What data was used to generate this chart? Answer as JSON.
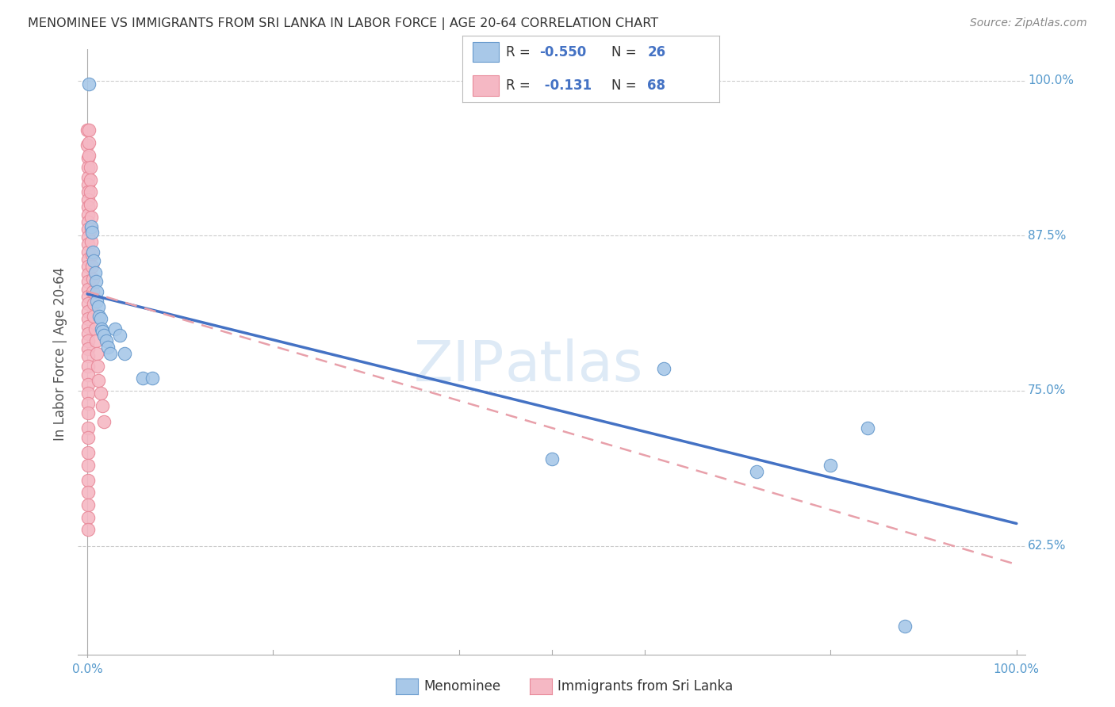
{
  "title": "MENOMINEE VS IMMIGRANTS FROM SRI LANKA IN LABOR FORCE | AGE 20-64 CORRELATION CHART",
  "source": "Source: ZipAtlas.com",
  "ylabel_label": "In Labor Force | Age 20-64",
  "ytick_values": [
    0.625,
    0.75,
    0.875,
    1.0
  ],
  "ytick_labels": [
    "62.5%",
    "75.0%",
    "87.5%",
    "100.0%"
  ],
  "xtick_labels": [
    "0.0%",
    "100.0%"
  ],
  "menominee_points": [
    [
      0.002,
      0.997
    ],
    [
      0.004,
      0.882
    ],
    [
      0.005,
      0.878
    ],
    [
      0.006,
      0.862
    ],
    [
      0.007,
      0.855
    ],
    [
      0.008,
      0.845
    ],
    [
      0.009,
      0.838
    ],
    [
      0.01,
      0.83
    ],
    [
      0.01,
      0.822
    ],
    [
      0.012,
      0.818
    ],
    [
      0.013,
      0.81
    ],
    [
      0.014,
      0.808
    ],
    [
      0.015,
      0.8
    ],
    [
      0.016,
      0.798
    ],
    [
      0.018,
      0.795
    ],
    [
      0.02,
      0.79
    ],
    [
      0.022,
      0.785
    ],
    [
      0.025,
      0.78
    ],
    [
      0.03,
      0.8
    ],
    [
      0.035,
      0.795
    ],
    [
      0.04,
      0.78
    ],
    [
      0.06,
      0.76
    ],
    [
      0.07,
      0.76
    ],
    [
      0.5,
      0.695
    ],
    [
      0.62,
      0.768
    ],
    [
      0.72,
      0.685
    ],
    [
      0.8,
      0.69
    ],
    [
      0.84,
      0.72
    ],
    [
      0.88,
      0.56
    ]
  ],
  "srilanka_points": [
    [
      0.0,
      0.96
    ],
    [
      0.0,
      0.948
    ],
    [
      0.001,
      0.938
    ],
    [
      0.001,
      0.93
    ],
    [
      0.001,
      0.922
    ],
    [
      0.001,
      0.916
    ],
    [
      0.001,
      0.91
    ],
    [
      0.001,
      0.904
    ],
    [
      0.001,
      0.898
    ],
    [
      0.001,
      0.892
    ],
    [
      0.001,
      0.886
    ],
    [
      0.001,
      0.88
    ],
    [
      0.001,
      0.874
    ],
    [
      0.001,
      0.868
    ],
    [
      0.001,
      0.862
    ],
    [
      0.001,
      0.856
    ],
    [
      0.001,
      0.85
    ],
    [
      0.001,
      0.844
    ],
    [
      0.001,
      0.838
    ],
    [
      0.001,
      0.832
    ],
    [
      0.001,
      0.826
    ],
    [
      0.001,
      0.82
    ],
    [
      0.001,
      0.814
    ],
    [
      0.001,
      0.808
    ],
    [
      0.001,
      0.802
    ],
    [
      0.001,
      0.796
    ],
    [
      0.001,
      0.79
    ],
    [
      0.001,
      0.784
    ],
    [
      0.001,
      0.778
    ],
    [
      0.001,
      0.77
    ],
    [
      0.001,
      0.763
    ],
    [
      0.001,
      0.755
    ],
    [
      0.001,
      0.748
    ],
    [
      0.001,
      0.74
    ],
    [
      0.001,
      0.732
    ],
    [
      0.001,
      0.72
    ],
    [
      0.001,
      0.712
    ],
    [
      0.001,
      0.7
    ],
    [
      0.001,
      0.69
    ],
    [
      0.001,
      0.678
    ],
    [
      0.001,
      0.668
    ],
    [
      0.001,
      0.658
    ],
    [
      0.001,
      0.648
    ],
    [
      0.001,
      0.638
    ],
    [
      0.002,
      0.96
    ],
    [
      0.002,
      0.95
    ],
    [
      0.002,
      0.94
    ],
    [
      0.003,
      0.93
    ],
    [
      0.003,
      0.92
    ],
    [
      0.003,
      0.91
    ],
    [
      0.003,
      0.9
    ],
    [
      0.004,
      0.89
    ],
    [
      0.004,
      0.88
    ],
    [
      0.004,
      0.87
    ],
    [
      0.005,
      0.86
    ],
    [
      0.005,
      0.85
    ],
    [
      0.006,
      0.84
    ],
    [
      0.006,
      0.83
    ],
    [
      0.007,
      0.82
    ],
    [
      0.007,
      0.81
    ],
    [
      0.008,
      0.8
    ],
    [
      0.009,
      0.79
    ],
    [
      0.01,
      0.78
    ],
    [
      0.011,
      0.77
    ],
    [
      0.012,
      0.758
    ],
    [
      0.014,
      0.748
    ],
    [
      0.016,
      0.738
    ],
    [
      0.018,
      0.725
    ]
  ],
  "blue_trendline_x": [
    0.0,
    1.0
  ],
  "blue_trendline_y": [
    0.828,
    0.643
  ],
  "pink_trendline_x": [
    0.0,
    1.0
  ],
  "pink_trendline_y": [
    0.83,
    0.61
  ],
  "menominee_color": "#a8c8e8",
  "menominee_edge": "#6699cc",
  "srilanka_color": "#f5b8c4",
  "srilanka_edge": "#e88898",
  "blue_line_color": "#4472c4",
  "pink_line_color": "#e8a0aa",
  "xlim": [
    -0.01,
    1.01
  ],
  "ylim": [
    0.535,
    1.025
  ],
  "bg_color": "#ffffff",
  "grid_color": "#cccccc",
  "watermark_zip_color": "#c8ddf0",
  "watermark_atlas_color": "#c8ddf0"
}
